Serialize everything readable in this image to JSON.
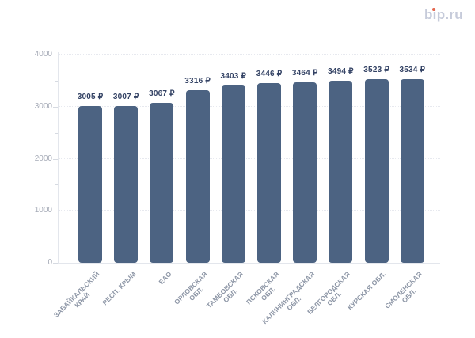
{
  "logo": {
    "text": "bip.ru",
    "t1": "b",
    "t2": "i",
    "t3": "p.ru",
    "text_color": "#c6cbda",
    "dot_color": "#e4674e"
  },
  "chart_data": {
    "type": "bar",
    "title": "",
    "categories": [
      "ЗАБАЙКАЛЬСКИЙ\nКРАЙ",
      "РЕСП. КРЫМ",
      "ЕАО",
      "ОРЛОВСКАЯ\nОБЛ.",
      "ТАМБОВСКАЯ\nОБЛ.",
      "ПСКОВСКАЯ\nОБЛ.",
      "КАЛИНИНГРАДСКАЯ\nОБЛ.",
      "БЕЛГОРОДСКАЯ\nОБЛ.",
      "КУРСКАЯ ОБЛ.",
      "СМОЛЕНСКАЯ\nОБЛ."
    ],
    "values": [
      3005,
      3007,
      3067,
      3316,
      3403,
      3446,
      3464,
      3494,
      3523,
      3534
    ],
    "value_suffix": " ₽",
    "currency": "₽",
    "xlabel": "",
    "ylabel": "",
    "ylim": [
      0,
      4000
    ],
    "yticks": [
      0,
      1000,
      2000,
      3000,
      4000
    ],
    "minor_yticks": [
      500,
      1500,
      2500,
      3500
    ],
    "grid": true,
    "legend": false,
    "colors": {
      "bar": "#4c6382",
      "value_label": "#334264",
      "x_label": "#8d96a6",
      "y_label": "#a6abb7",
      "grid": "#e7e9ef",
      "axis": "#e3e6ec",
      "tick": "#d6dae1"
    }
  }
}
